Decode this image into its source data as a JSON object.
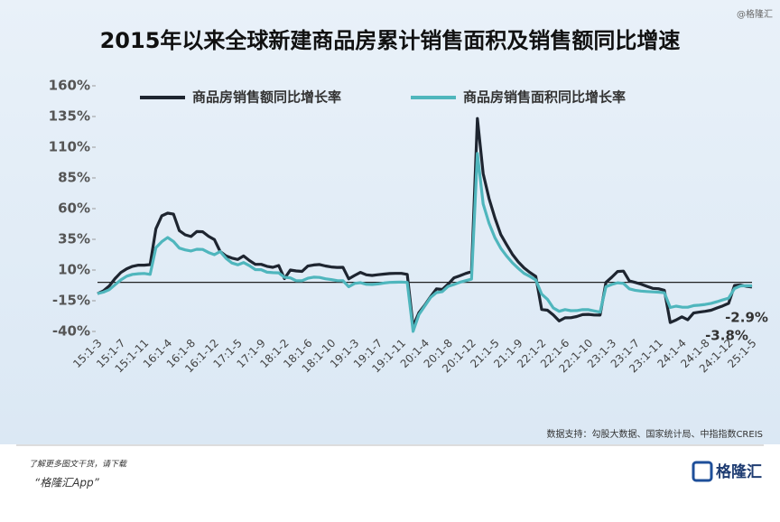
{
  "chart_data": {
    "type": "line",
    "title": "2015年以来全球新建商品房累计销售面积及销售额同比增速",
    "watermark": "@格隆汇",
    "source": "数据支持：勾股大数据、国家统计局、中指指数CREIS",
    "footer": {
      "line1": "了解更多图文干货，请下载",
      "line2": "“格隆汇App”",
      "logo": "格隆汇"
    },
    "annotations": [
      "-2.9%",
      "-3.8%"
    ],
    "ylim": [
      -40,
      160
    ],
    "yticks": [
      {
        "value": 160,
        "label": "160%"
      },
      {
        "value": 135,
        "label": "135%"
      },
      {
        "value": 110,
        "label": "110%"
      },
      {
        "value": 85,
        "label": "85%"
      },
      {
        "value": 60,
        "label": "60%"
      },
      {
        "value": 35,
        "label": "35%"
      },
      {
        "value": 10,
        "label": "10%"
      },
      {
        "value": -15,
        "label": "-15%"
      },
      {
        "value": -40,
        "label": "-40%"
      }
    ],
    "legend": "top",
    "categories": [
      "15:1-3",
      null,
      null,
      null,
      "15:1-7",
      null,
      null,
      null,
      "15:1-11",
      null,
      null,
      null,
      "16:1-4",
      null,
      null,
      null,
      "16:1-8",
      null,
      null,
      null,
      "16:1-12",
      null,
      null,
      null,
      "17:1-5",
      null,
      null,
      null,
      "17:1-9",
      null,
      null,
      null,
      "18:1-2",
      null,
      null,
      null,
      "18:1-6",
      null,
      null,
      null,
      "18:1-10",
      null,
      null,
      null,
      "19:1-3",
      null,
      null,
      null,
      "19:1-7",
      null,
      null,
      null,
      "19:1-11",
      null,
      null,
      null,
      "20:1-4",
      null,
      null,
      null,
      "20:1-8",
      null,
      null,
      null,
      "20:1-12",
      null,
      null,
      null,
      "21:1-5",
      null,
      null,
      null,
      "21:1-9",
      null,
      null,
      null,
      "22:1-2",
      null,
      null,
      null,
      "22:1-6",
      null,
      null,
      null,
      "22:1-10",
      null,
      null,
      null,
      "23:1-3",
      null,
      null,
      null,
      "23:1-7",
      null,
      null,
      null,
      "23:1-11",
      null,
      null,
      null,
      "24:1-4",
      null,
      null,
      null,
      "24:1-8",
      null,
      null,
      null,
      "24:1-12",
      null,
      null,
      null,
      "25:1-5"
    ],
    "series": [
      {
        "name": "商品房销售额同比增长率",
        "color": "#1e2530",
        "values": [
          -9.3,
          -7,
          -3,
          3,
          8,
          11,
          13,
          14,
          14,
          14.4,
          43.6,
          54.1,
          56.3,
          55.5,
          42.1,
          38.7,
          37.3,
          41.3,
          41.2,
          37.5,
          34.8,
          25.1,
          21.5,
          19.7,
          18.6,
          21.5,
          17.7,
          14.6,
          14.6,
          13.0,
          12.2,
          13.7,
          3.0,
          10.0,
          9.3,
          8.9,
          13.2,
          14.1,
          14.5,
          13.3,
          12.5,
          12.1,
          12.2,
          2.8,
          5.6,
          8.1,
          6.1,
          5.6,
          6.2,
          6.7,
          7.1,
          7.3,
          7.3,
          6.5,
          -35.9,
          -24.7,
          -18.6,
          -11.6,
          -5.4,
          -5.8,
          -1.5,
          3.7,
          5.3,
          7.2,
          8.7,
          133.4,
          88.5,
          68.2,
          52.4,
          38.9,
          30.7,
          22.8,
          16.6,
          11.8,
          8.0,
          4.8,
          -22.1,
          -22.7,
          -26.6,
          -31.5,
          -28.9,
          -28.8,
          -27.9,
          -26.3,
          -26.1,
          -26.6,
          -26.7,
          -0.1,
          4.1,
          8.8,
          9.1,
          1.1,
          -0.1,
          -1.5,
          -3.2,
          -4.9,
          -5.2,
          -6.5,
          -32.7,
          -30.7,
          -28.1,
          -30.5,
          -25.0,
          -24.3,
          -23.6,
          -22.7,
          -20.9,
          -19.2,
          -17.1,
          -2.6,
          -2.1,
          -3.2,
          -3.8
        ]
      },
      {
        "name": "商品房销售面积同比增长率",
        "color": "#4fb6bd",
        "values": [
          -9.2,
          -8,
          -6,
          -2,
          2,
          5,
          6.5,
          7,
          7.2,
          6.5,
          28.2,
          33.1,
          36.5,
          33.2,
          27.9,
          26.4,
          25.5,
          26.9,
          26.8,
          24.3,
          22.5,
          25.1,
          19.5,
          15.7,
          14.3,
          16.1,
          13.5,
          10.4,
          10.3,
          8.2,
          7.9,
          7.7,
          4.1,
          3.6,
          1.3,
          1.3,
          3.3,
          4.2,
          4.0,
          2.9,
          2.2,
          1.4,
          1.3,
          -3.6,
          -0.9,
          -0.3,
          -1.6,
          -1.8,
          -1.3,
          -0.6,
          -0.1,
          0.1,
          0.2,
          -0.1,
          -39.9,
          -26.3,
          -19.3,
          -12.3,
          -8.4,
          -7.6,
          -3.3,
          -1.8,
          0.0,
          1.3,
          2.6,
          104.9,
          63.8,
          48.1,
          36.3,
          27.7,
          21.5,
          15.9,
          11.3,
          7.3,
          4.8,
          1.9,
          -9.6,
          -13.8,
          -20.9,
          -23.6,
          -22.2,
          -23.1,
          -23.0,
          -22.2,
          -22.3,
          -23.3,
          -24.3,
          -3.6,
          -1.8,
          -0.4,
          -0.9,
          -5.3,
          -6.5,
          -7.1,
          -7.5,
          -7.8,
          -8.0,
          -8.5,
          -20.5,
          -19.4,
          -20.2,
          -20.3,
          -19.0,
          -18.6,
          -18.0,
          -17.1,
          -15.8,
          -14.3,
          -12.9,
          -5.1,
          -3.0,
          -2.8,
          -2.9
        ]
      }
    ]
  }
}
